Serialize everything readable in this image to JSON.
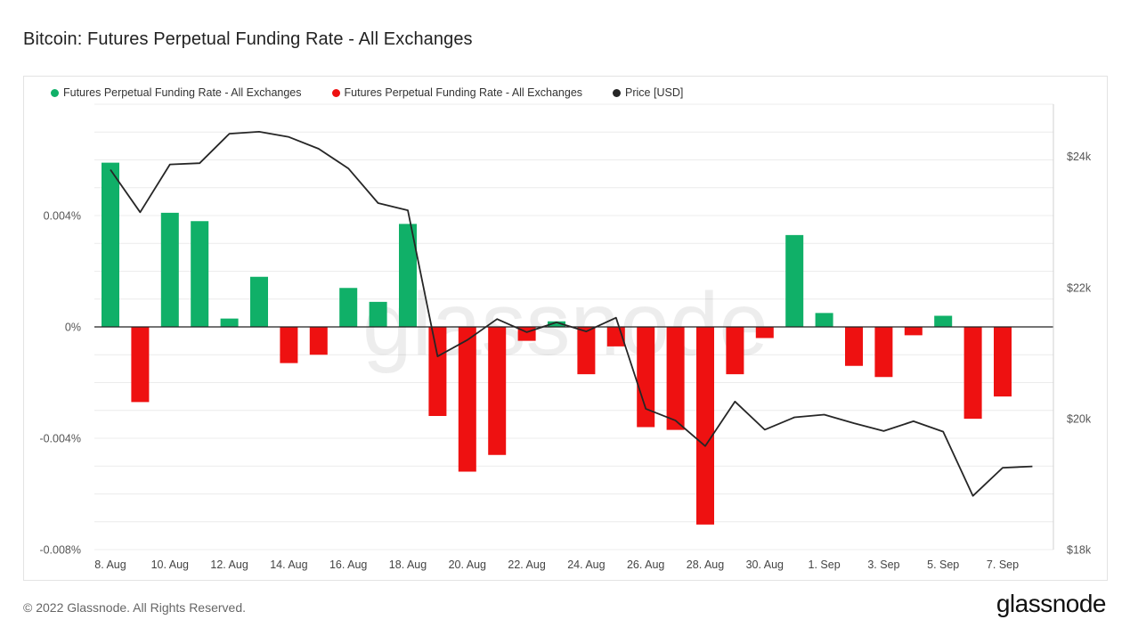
{
  "page": {
    "title": "Bitcoin: Futures Perpetual Funding Rate - All Exchanges",
    "footer": "© 2022 Glassnode. All Rights Reserved.",
    "brand": "glassnode",
    "watermark": "glassnode"
  },
  "colors": {
    "positive": "#10b068",
    "negative": "#ee1111",
    "price": "#262626",
    "grid": "#ececec"
  },
  "chart_data": {
    "type": "bar",
    "title": "Bitcoin: Futures Perpetual Funding Rate - All Exchanges",
    "legend": [
      {
        "label": "Futures Perpetual Funding Rate - All Exchanges",
        "color": "#10b068"
      },
      {
        "label": "Futures Perpetual Funding Rate - All Exchanges",
        "color": "#ee1111"
      },
      {
        "label": "Price [USD]",
        "color": "#262626"
      }
    ],
    "dates": [
      "8 Aug",
      "9 Aug",
      "10 Aug",
      "11 Aug",
      "12 Aug",
      "13 Aug",
      "14 Aug",
      "15 Aug",
      "16 Aug",
      "17 Aug",
      "18 Aug",
      "19 Aug",
      "20 Aug",
      "21 Aug",
      "22 Aug",
      "23 Aug",
      "24 Aug",
      "25 Aug",
      "26 Aug",
      "27 Aug",
      "28 Aug",
      "29 Aug",
      "30 Aug",
      "31 Aug",
      "1 Sep",
      "2 Sep",
      "3 Sep",
      "4 Sep",
      "5 Sep",
      "6 Sep",
      "7 Sep",
      "8 Sep"
    ],
    "x_tick_labels": [
      "8. Aug",
      "10. Aug",
      "12. Aug",
      "14. Aug",
      "16. Aug",
      "18. Aug",
      "20. Aug",
      "22. Aug",
      "24. Aug",
      "26. Aug",
      "28. Aug",
      "30. Aug",
      "1. Sep",
      "3. Sep",
      "5. Sep",
      "7. Sep"
    ],
    "x_tick_indices": [
      0,
      2,
      4,
      6,
      8,
      10,
      12,
      14,
      16,
      18,
      20,
      22,
      24,
      26,
      28,
      30
    ],
    "funding_rate": [
      0.0059,
      -0.0027,
      0.0041,
      0.0038,
      0.0003,
      0.0018,
      -0.0013,
      -0.001,
      0.0014,
      0.0009,
      0.0037,
      -0.0032,
      -0.0052,
      -0.0046,
      -0.0005,
      0.0002,
      -0.0017,
      -0.0007,
      -0.0036,
      -0.0037,
      -0.0071,
      -0.0017,
      -0.0004,
      0.0033,
      0.0005,
      -0.0014,
      -0.0018,
      -0.0003,
      0.0004,
      -0.0033,
      -0.0025,
      null
    ],
    "price": [
      23800,
      23150,
      23880,
      23900,
      24350,
      24380,
      24300,
      24120,
      23820,
      23290,
      23180,
      20950,
      21200,
      21520,
      21320,
      21470,
      21330,
      21540,
      20150,
      19970,
      19580,
      20260,
      19830,
      20020,
      20060,
      19930,
      19810,
      19960,
      19800,
      18820,
      19250,
      19270
    ],
    "left_axis": {
      "min": -0.008,
      "max": 0.008,
      "ticks": [
        0.004,
        0,
        -0.004,
        -0.008
      ],
      "tick_labels": [
        "0.004%",
        "0%",
        "-0.004%",
        "-0.008%"
      ]
    },
    "right_axis": {
      "min": 18000,
      "max": 24800,
      "ticks": [
        24000,
        22000,
        20000,
        18000
      ],
      "tick_labels": [
        "$24k",
        "$22k",
        "$20k",
        "$18k"
      ]
    },
    "grid": true
  }
}
